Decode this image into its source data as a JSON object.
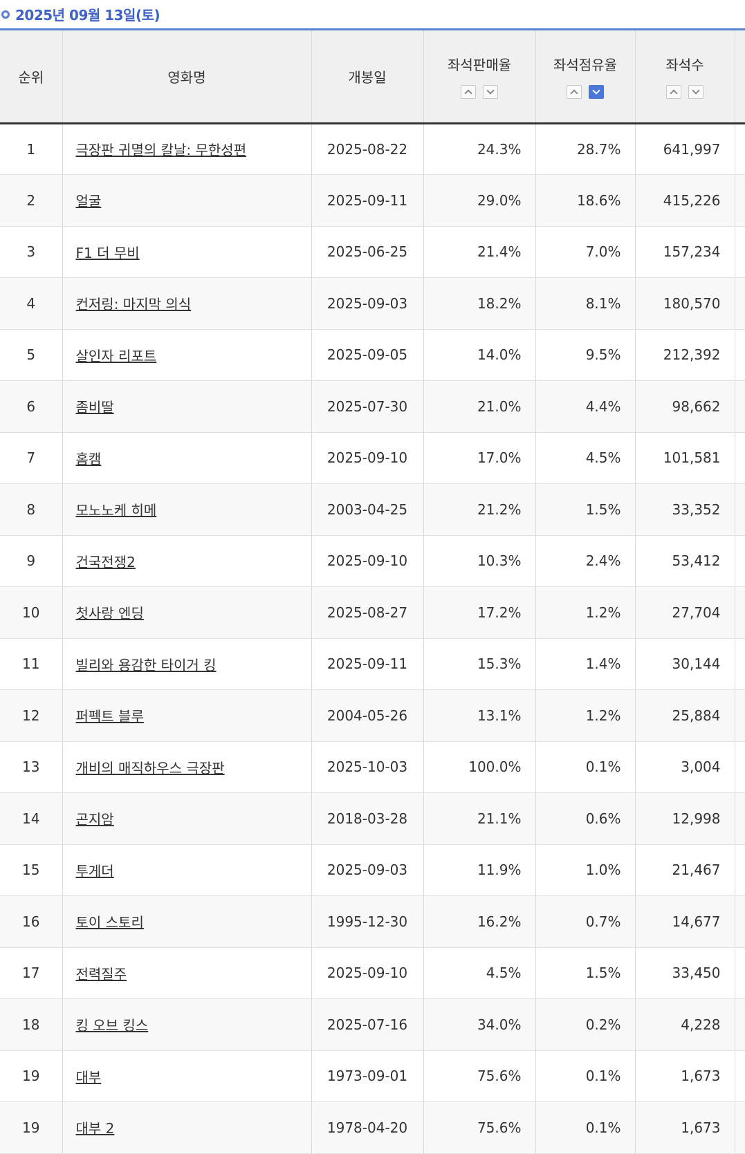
{
  "date_label": "2025년 09월 13일(토)",
  "colors": {
    "accent": "#3f63c4",
    "active_sort": "#4a77d8",
    "header_bg": "#f0f0f0"
  },
  "columns": {
    "rank": "순위",
    "title": "영화명",
    "release_date": "개봉일",
    "seat_sales_rate": "좌석판매율",
    "seat_share": "좌석점유율",
    "seats": "좌석수"
  },
  "sort_state": {
    "seat_share": "desc"
  },
  "rows": [
    {
      "rank": "1",
      "title": "극장판 귀멸의 칼날: 무한성편",
      "release_date": "2025-08-22",
      "seat_sales_rate": "24.3%",
      "seat_share": "28.7%",
      "seats": "641,997"
    },
    {
      "rank": "2",
      "title": "얼굴",
      "release_date": "2025-09-11",
      "seat_sales_rate": "29.0%",
      "seat_share": "18.6%",
      "seats": "415,226"
    },
    {
      "rank": "3",
      "title": "F1 더 무비",
      "release_date": "2025-06-25",
      "seat_sales_rate": "21.4%",
      "seat_share": "7.0%",
      "seats": "157,234"
    },
    {
      "rank": "4",
      "title": "컨저링: 마지막 의식",
      "release_date": "2025-09-03",
      "seat_sales_rate": "18.2%",
      "seat_share": "8.1%",
      "seats": "180,570"
    },
    {
      "rank": "5",
      "title": "살인자 리포트",
      "release_date": "2025-09-05",
      "seat_sales_rate": "14.0%",
      "seat_share": "9.5%",
      "seats": "212,392"
    },
    {
      "rank": "6",
      "title": "좀비딸",
      "release_date": "2025-07-30",
      "seat_sales_rate": "21.0%",
      "seat_share": "4.4%",
      "seats": "98,662"
    },
    {
      "rank": "7",
      "title": "홈캠",
      "release_date": "2025-09-10",
      "seat_sales_rate": "17.0%",
      "seat_share": "4.5%",
      "seats": "101,581"
    },
    {
      "rank": "8",
      "title": "모노노케 히메",
      "release_date": "2003-04-25",
      "seat_sales_rate": "21.2%",
      "seat_share": "1.5%",
      "seats": "33,352"
    },
    {
      "rank": "9",
      "title": "건국전쟁2",
      "release_date": "2025-09-10",
      "seat_sales_rate": "10.3%",
      "seat_share": "2.4%",
      "seats": "53,412"
    },
    {
      "rank": "10",
      "title": "첫사랑 엔딩",
      "release_date": "2025-08-27",
      "seat_sales_rate": "17.2%",
      "seat_share": "1.2%",
      "seats": "27,704"
    },
    {
      "rank": "11",
      "title": "빌리와 용감한 타이거 킹",
      "release_date": "2025-09-11",
      "seat_sales_rate": "15.3%",
      "seat_share": "1.4%",
      "seats": "30,144"
    },
    {
      "rank": "12",
      "title": "퍼펙트 블루",
      "release_date": "2004-05-26",
      "seat_sales_rate": "13.1%",
      "seat_share": "1.2%",
      "seats": "25,884"
    },
    {
      "rank": "13",
      "title": "개비의 매직하우스 극장판",
      "release_date": "2025-10-03",
      "seat_sales_rate": "100.0%",
      "seat_share": "0.1%",
      "seats": "3,004"
    },
    {
      "rank": "14",
      "title": "곤지암",
      "release_date": "2018-03-28",
      "seat_sales_rate": "21.1%",
      "seat_share": "0.6%",
      "seats": "12,998"
    },
    {
      "rank": "15",
      "title": "투게더",
      "release_date": "2025-09-03",
      "seat_sales_rate": "11.9%",
      "seat_share": "1.0%",
      "seats": "21,467"
    },
    {
      "rank": "16",
      "title": "토이 스토리",
      "release_date": "1995-12-30",
      "seat_sales_rate": "16.2%",
      "seat_share": "0.7%",
      "seats": "14,677"
    },
    {
      "rank": "17",
      "title": "전력질주",
      "release_date": "2025-09-10",
      "seat_sales_rate": "4.5%",
      "seat_share": "1.5%",
      "seats": "33,450"
    },
    {
      "rank": "18",
      "title": "킹 오브 킹스",
      "release_date": "2025-07-16",
      "seat_sales_rate": "34.0%",
      "seat_share": "0.2%",
      "seats": "4,228"
    },
    {
      "rank": "19",
      "title": "대부",
      "release_date": "1973-09-01",
      "seat_sales_rate": "75.6%",
      "seat_share": "0.1%",
      "seats": "1,673"
    },
    {
      "rank": "19",
      "title": "대부 2",
      "release_date": "1978-04-20",
      "seat_sales_rate": "75.6%",
      "seat_share": "0.1%",
      "seats": "1,673"
    }
  ]
}
